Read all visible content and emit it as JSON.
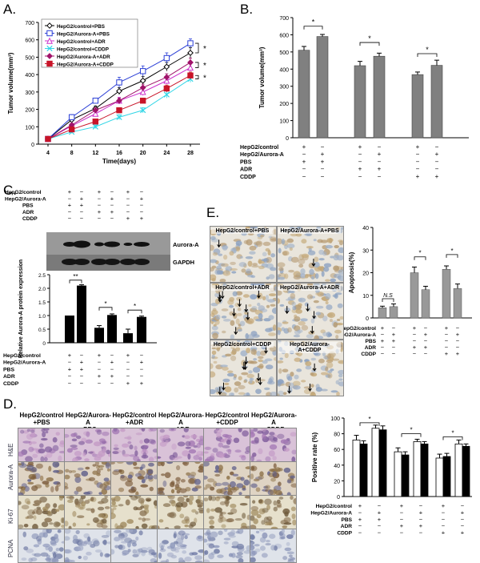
{
  "panels": {
    "A": "A.",
    "B": "B.",
    "C": "C.",
    "D": "D.",
    "E": "E."
  },
  "colors": {
    "black": "#000000",
    "blue": "#2b3fd6",
    "magenta": "#cc33cc",
    "cyan": "#33d6e6",
    "darkmag": "#a0136a",
    "red": "#c81428",
    "bargray": "#808080",
    "white": "#ffffff"
  },
  "chart_data": [
    {
      "id": "A",
      "type": "line",
      "xlabel": "Time(days)",
      "ylabel": "Tumor volume(mm³)",
      "xlim": [
        4,
        28
      ],
      "ylim": [
        0,
        700
      ],
      "xticks": [
        "4",
        "8",
        "12",
        "16",
        "20",
        "24",
        "28"
      ],
      "yticks": [
        "0",
        "100",
        "200",
        "300",
        "400",
        "500",
        "600",
        "700"
      ],
      "x": [
        4,
        8,
        12,
        16,
        20,
        24,
        28
      ],
      "series": [
        {
          "name": "HepG2/control+PBS",
          "values": [
            30,
            140,
            205,
            305,
            365,
            445,
            525
          ],
          "err": [
            5,
            15,
            15,
            20,
            25,
            25,
            30
          ],
          "color": "#000000",
          "marker": "diamond-open"
        },
        {
          "name": "HepG2/Aurora-A+PBS",
          "values": [
            30,
            155,
            250,
            355,
            420,
            495,
            580
          ],
          "err": [
            5,
            15,
            15,
            30,
            30,
            30,
            25
          ],
          "color": "#2b3fd6",
          "marker": "square-open"
        },
        {
          "name": "HepG2/control+ADR",
          "values": [
            30,
            105,
            175,
            250,
            300,
            365,
            440
          ],
          "err": [
            5,
            10,
            15,
            20,
            20,
            20,
            20
          ],
          "color": "#cc33cc",
          "marker": "triangle-open"
        },
        {
          "name": "HepG2/control+CDDP",
          "values": [
            30,
            70,
            100,
            155,
            195,
            285,
            375
          ],
          "err": [
            5,
            8,
            10,
            15,
            15,
            20,
            20
          ],
          "color": "#33d6e6",
          "marker": "x"
        },
        {
          "name": "HepG2/Aurora-A+ADR",
          "values": [
            30,
            110,
            195,
            250,
            325,
            385,
            470
          ],
          "err": [
            5,
            10,
            15,
            15,
            20,
            20,
            25
          ],
          "color": "#a0136a",
          "marker": "diamond"
        },
        {
          "name": "HepG2/Aurora-A+CDDP",
          "values": [
            30,
            85,
            130,
            195,
            250,
            320,
            395
          ],
          "err": [
            5,
            10,
            10,
            15,
            15,
            20,
            20
          ],
          "color": "#c81428",
          "marker": "square"
        }
      ],
      "annotations": [
        "*",
        "*",
        "*"
      ]
    },
    {
      "id": "B",
      "type": "bar",
      "ylabel": "Tumor volume(mm³)",
      "ylim": [
        0,
        700
      ],
      "yticks": [
        "0",
        "100",
        "200",
        "300",
        "400",
        "500",
        "600",
        "700"
      ],
      "values": [
        510,
        590,
        420,
        475,
        368,
        422
      ],
      "err": [
        22,
        12,
        25,
        18,
        15,
        30
      ],
      "sig": [
        "*",
        "*",
        "*"
      ],
      "row_labels": [
        "HepG2/control",
        "HepG2/Aurora-A",
        "PBS",
        "ADR",
        "CDDP"
      ],
      "signs": [
        [
          "+",
          "−",
          "+",
          "−",
          "+",
          "−"
        ],
        [
          "−",
          "+",
          "−",
          "+",
          "−",
          "+"
        ],
        [
          "+",
          "+",
          "−",
          "−",
          "−",
          "−"
        ],
        [
          "−",
          "−",
          "+",
          "+",
          "−",
          "−"
        ],
        [
          "−",
          "−",
          "−",
          "−",
          "+",
          "+"
        ]
      ]
    },
    {
      "id": "C",
      "type": "bar",
      "ylabel": "Relative Aurora-A protein expression",
      "ylim": [
        0,
        2.5
      ],
      "yticks": [
        "0",
        "0.5",
        "1.0",
        "1.5",
        "2.0",
        "2.5"
      ],
      "values": [
        1.0,
        2.1,
        0.55,
        1.02,
        0.35,
        0.95
      ],
      "err": [
        0,
        0.03,
        0.08,
        0.04,
        0.15,
        0.03
      ],
      "sig": [
        "**",
        "*",
        "*"
      ],
      "blot_labels": [
        "Aurora-A",
        "GAPDH"
      ],
      "row_labels": [
        "HepG2/control",
        "HepG2/Aurora-A",
        "PBS",
        "ADR",
        "CDDP"
      ],
      "signs": [
        [
          "+",
          "−",
          "+",
          "−",
          "+",
          "−"
        ],
        [
          "−",
          "+",
          "−",
          "+",
          "−",
          "+"
        ],
        [
          "+",
          "+",
          "−",
          "−",
          "−",
          "−"
        ],
        [
          "−",
          "−",
          "+",
          "+",
          "−",
          "−"
        ],
        [
          "−",
          "−",
          "−",
          "−",
          "+",
          "+"
        ]
      ]
    },
    {
      "id": "E",
      "type": "bar",
      "ylabel": "Apoptosis(%)",
      "ylim": [
        0,
        40
      ],
      "yticks": [
        "0",
        "10",
        "20",
        "30",
        "40"
      ],
      "values": [
        4.5,
        5,
        20,
        12.5,
        21.5,
        13
      ],
      "err": [
        0.7,
        1.2,
        2.5,
        1.5,
        1.5,
        2
      ],
      "sig": [
        "N.S",
        "*",
        "*"
      ],
      "row_labels": [
        "HepG2/control",
        "HepG2/Aurora-A",
        "PBS",
        "ADR",
        "CDDP"
      ],
      "signs": [
        [
          "+",
          "−",
          "+",
          "−",
          "+",
          "−"
        ],
        [
          "−",
          "+",
          "−",
          "+",
          "−",
          "+"
        ],
        [
          "+",
          "+",
          "−",
          "−",
          "−",
          "−"
        ],
        [
          "−",
          "−",
          "+",
          "+",
          "−",
          "−"
        ],
        [
          "−",
          "−",
          "−",
          "−",
          "+",
          "+"
        ]
      ]
    },
    {
      "id": "D",
      "type": "bar",
      "ylabel": "Positive rate (%)",
      "ylim": [
        0,
        100
      ],
      "yticks": [
        "0",
        "20",
        "40",
        "60",
        "80",
        "100"
      ],
      "series": [
        {
          "name": "white",
          "values": [
            72,
            87,
            57,
            70,
            49,
            67
          ],
          "err": [
            6,
            4,
            5,
            3,
            5,
            5
          ]
        },
        {
          "name": "black",
          "values": [
            67,
            85,
            53,
            67,
            51,
            64
          ],
          "err": [
            4,
            5,
            4,
            3,
            4,
            3
          ]
        }
      ],
      "sig": [
        "*",
        "*",
        "*"
      ],
      "row_labels": [
        "HepG2/control",
        "HepG2/Aurora-A",
        "PBS",
        "ADR",
        "CDDP"
      ],
      "signs": [
        [
          "+",
          "−",
          "+",
          "−",
          "+",
          "−"
        ],
        [
          "−",
          "+",
          "−",
          "+",
          "−",
          "+"
        ],
        [
          "+",
          "+",
          "−",
          "−",
          "−",
          "−"
        ],
        [
          "−",
          "−",
          "+",
          "+",
          "−",
          "−"
        ],
        [
          "−",
          "−",
          "−",
          "−",
          "+",
          "+"
        ]
      ]
    }
  ],
  "panelE_images": {
    "labels": [
      "HepG2/control+PBS",
      "HepG2/Aurora-A+PBS",
      "HepG2/control+ADR",
      "HepG2/Aurora-A+ADR",
      "HepG2/control+CDDP",
      "HepG2/Aurora-A+CDDP"
    ]
  },
  "panelD_images": {
    "col_labels": [
      [
        "HepG2/control",
        "+PBS"
      ],
      [
        "HepG2/Aurora-A",
        "+PBS"
      ],
      [
        "HepG2/control",
        "+ADR"
      ],
      [
        "HepG2/Aurora-A",
        "+ADR"
      ],
      [
        "HepG2/control",
        "+CDDP"
      ],
      [
        "HepG2/Aurora-A",
        "+CDDP"
      ]
    ],
    "row_labels": [
      "H&E",
      "Aurora-A",
      "Ki-67",
      "PCNA"
    ]
  }
}
